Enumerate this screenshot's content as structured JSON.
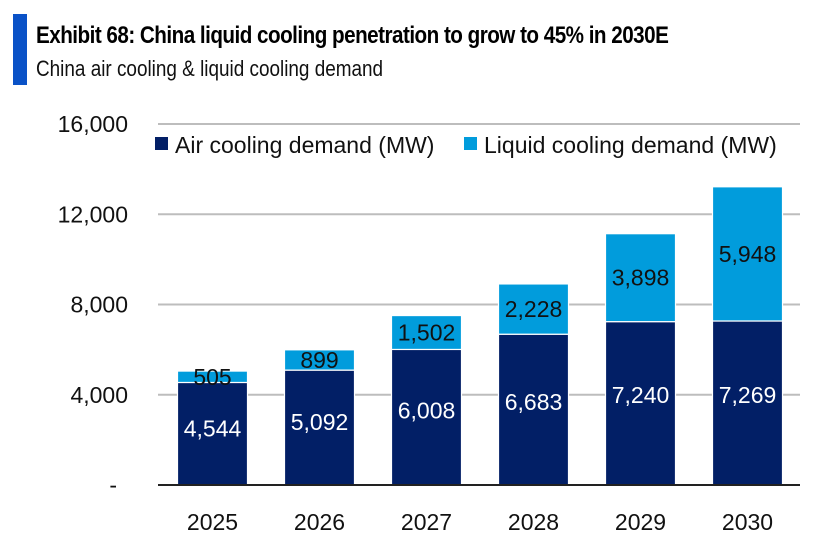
{
  "header": {
    "title": "Exhibit 68: China liquid cooling penetration to grow to 45% in 2030E",
    "subtitle": "China air cooling & liquid cooling demand",
    "accent_color": "#0a52c7"
  },
  "chart_data": {
    "type": "bar",
    "stacked": true,
    "title": "Exhibit 68: China liquid cooling penetration to grow to 45% in 2030E",
    "subtitle": "China air cooling & liquid cooling demand",
    "xlabel": "",
    "ylabel": "",
    "categories": [
      "2025",
      "2026",
      "2027",
      "2028",
      "2029",
      "2030"
    ],
    "series": [
      {
        "name": "Air cooling demand (MW)",
        "color": "#021f66",
        "label_color": "#ffffff",
        "values": [
          4544,
          5092,
          6008,
          6683,
          7240,
          7269
        ]
      },
      {
        "name": "Liquid cooling demand (MW)",
        "color": "#019cdc",
        "label_color": "#111111",
        "values": [
          505,
          899,
          1502,
          2228,
          3898,
          5948
        ]
      }
    ],
    "ylim": [
      0,
      16000
    ],
    "yticks": [
      0,
      4000,
      8000,
      12000,
      16000
    ],
    "ytick_labels": [
      "-",
      "4,000",
      "8,000",
      "12,000",
      "16,000"
    ],
    "grid": true,
    "legend_position": "top"
  }
}
